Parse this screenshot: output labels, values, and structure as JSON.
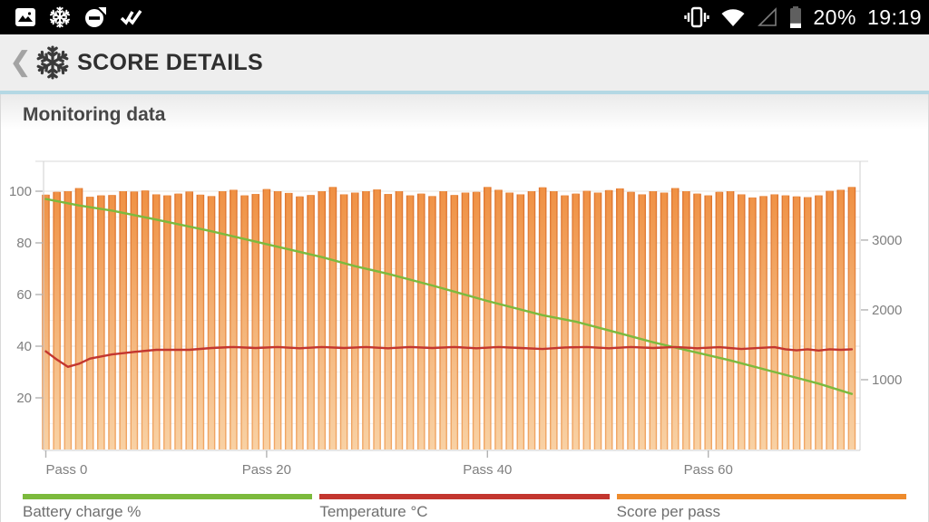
{
  "status_bar": {
    "time": "19:19",
    "battery_percent": "20%",
    "left_icons": [
      "gallery-icon",
      "snowflake-icon",
      "circle-minus-icon",
      "double-check-icon"
    ],
    "right_icons": [
      "vibrate-icon",
      "wifi-icon",
      "signal-triangle-icon",
      "battery-icon"
    ]
  },
  "header": {
    "back_icon": "chevron-left-icon",
    "app_icon": "snowflake-logo",
    "title": "SCORE DETAILS"
  },
  "section": {
    "title": "Monitoring data"
  },
  "chart_data": {
    "type": "bar",
    "title": "Monitoring data",
    "x_axis": {
      "ticks": [
        "Pass 0",
        "Pass 20",
        "Pass 40",
        "Pass 60"
      ],
      "tick_passes": [
        0,
        20,
        40,
        60
      ],
      "range": [
        0,
        74
      ]
    },
    "left_axis": {
      "ticks": [
        20,
        40,
        60,
        80,
        100
      ],
      "range": [
        0,
        111
      ],
      "grid": "on"
    },
    "right_axis": {
      "ticks": [
        1000,
        2000,
        3000
      ],
      "range": [
        0,
        4100
      ]
    },
    "series": [
      {
        "name": "Battery charge %",
        "type": "line",
        "axis": "left",
        "color": "#7cba3d",
        "points": [
          [
            0,
            97
          ],
          [
            3,
            94.5
          ],
          [
            6,
            92.5
          ],
          [
            10,
            89
          ],
          [
            15,
            84.5
          ],
          [
            20,
            79.5
          ],
          [
            25,
            74.5
          ],
          [
            28,
            71
          ],
          [
            31,
            68
          ],
          [
            35,
            63.5
          ],
          [
            40,
            57.5
          ],
          [
            45,
            52
          ],
          [
            48,
            49.5
          ],
          [
            52,
            45
          ],
          [
            55,
            41.5
          ],
          [
            58,
            38.5
          ],
          [
            62,
            34.5
          ],
          [
            66,
            30
          ],
          [
            70,
            25.5
          ],
          [
            73,
            21.5
          ]
        ]
      },
      {
        "name": "Temperature °C",
        "type": "line",
        "axis": "left",
        "color": "#c3362f",
        "points": [
          [
            0,
            38
          ],
          [
            1,
            34.8
          ],
          [
            2,
            32
          ],
          [
            3,
            33.2
          ],
          [
            4,
            35.2
          ],
          [
            6,
            36.8
          ],
          [
            8,
            37.8
          ],
          [
            10,
            38.6
          ],
          [
            13,
            38.6
          ],
          [
            15,
            39.3
          ],
          [
            17,
            39.7
          ],
          [
            19,
            39.3
          ],
          [
            21,
            39.7
          ],
          [
            23,
            39.2
          ],
          [
            25,
            39.7
          ],
          [
            27,
            39.3
          ],
          [
            29,
            39.7
          ],
          [
            31,
            39.2
          ],
          [
            33,
            39.7
          ],
          [
            35,
            39.3
          ],
          [
            37,
            39.7
          ],
          [
            39,
            39.2
          ],
          [
            41,
            39.7
          ],
          [
            43,
            39.3
          ],
          [
            45,
            38.9
          ],
          [
            47,
            39.5
          ],
          [
            49,
            39.7
          ],
          [
            51,
            39.2
          ],
          [
            53,
            39.7
          ],
          [
            55,
            39.3
          ],
          [
            57,
            39.7
          ],
          [
            59,
            39.2
          ],
          [
            61,
            39.6
          ],
          [
            63,
            38.9
          ],
          [
            65,
            39.4
          ],
          [
            66,
            39.6
          ],
          [
            67,
            38.8
          ],
          [
            68,
            38.4
          ],
          [
            69,
            38.8
          ],
          [
            70,
            38.3
          ],
          [
            71,
            38.8
          ],
          [
            72,
            38.6
          ],
          [
            73,
            38.8
          ]
        ]
      },
      {
        "name": "Score per pass",
        "type": "bar",
        "axis": "right",
        "color": "#ee8b2c",
        "values": [
          3650,
          3690,
          3700,
          3745,
          3620,
          3640,
          3645,
          3700,
          3695,
          3710,
          3655,
          3640,
          3665,
          3695,
          3650,
          3630,
          3700,
          3720,
          3640,
          3660,
          3730,
          3700,
          3675,
          3625,
          3645,
          3700,
          3760,
          3655,
          3680,
          3700,
          3725,
          3660,
          3700,
          3640,
          3665,
          3630,
          3700,
          3645,
          3680,
          3690,
          3760,
          3720,
          3680,
          3655,
          3700,
          3755,
          3700,
          3640,
          3665,
          3705,
          3680,
          3715,
          3740,
          3690,
          3655,
          3700,
          3680,
          3745,
          3700,
          3665,
          3640,
          3690,
          3700,
          3655,
          3610,
          3630,
          3655,
          3640,
          3625,
          3615,
          3640,
          3705,
          3720,
          3760
        ]
      }
    ]
  },
  "legend_note": "legend labels bound from chart_data.series names"
}
